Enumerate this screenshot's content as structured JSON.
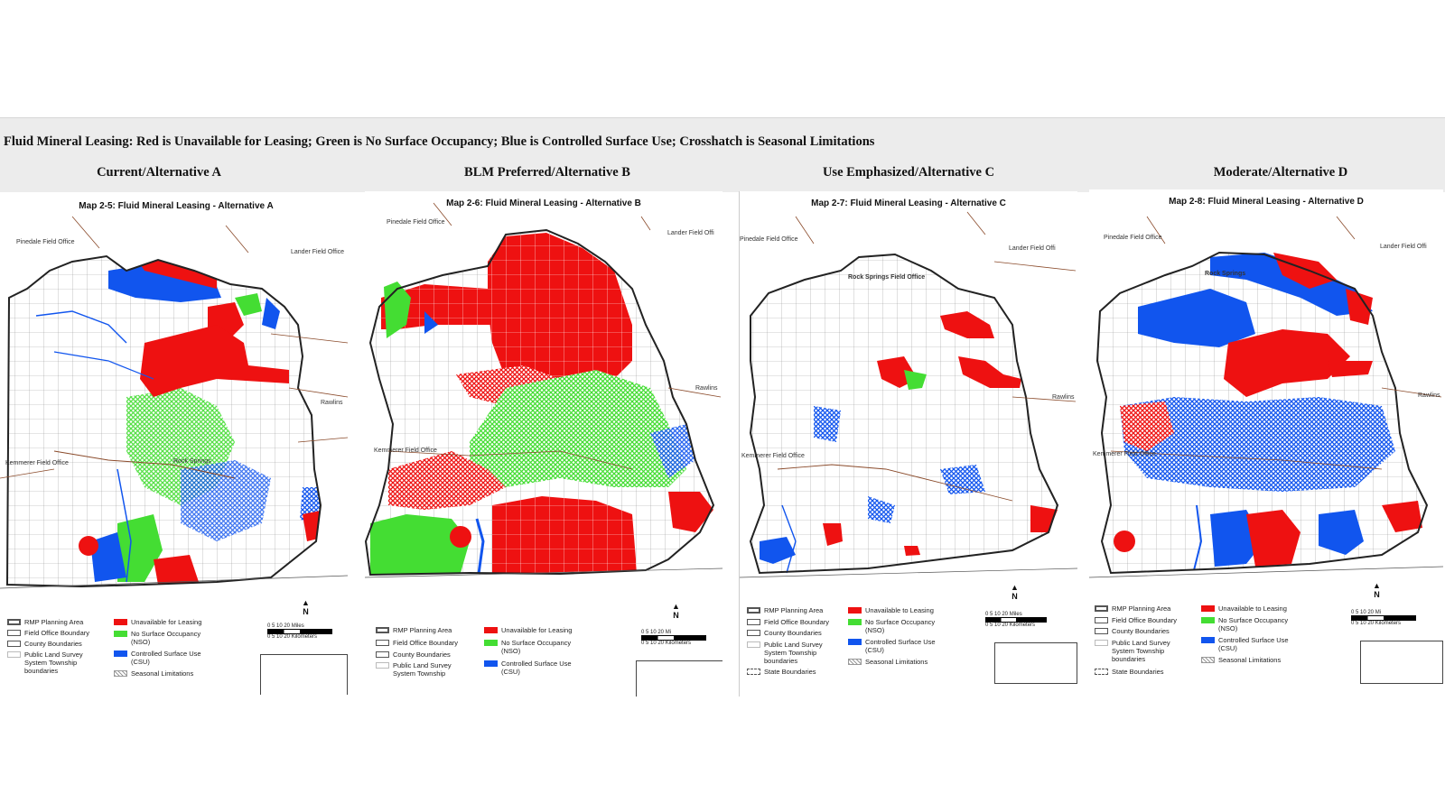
{
  "banner": {
    "title": "Fluid Mineral Leasing: Red is Unavailable for Leasing; Green is No Surface Occupancy; Blue is Controlled Surface Use; Crosshatch is Seasonal Limitations",
    "alternatives": [
      "Current/Alternative A",
      "BLM Preferred/Alternative B",
      "Use Emphasized/Alternative C",
      "Moderate/Alternative D"
    ]
  },
  "colors": {
    "unavailable": "#ee1111",
    "nso": "#44dd33",
    "csu": "#1155ee",
    "seasonal": "#aaaaaa"
  },
  "panels": [
    {
      "title": "Map 2-5: Fluid Mineral Leasing - Alternative A",
      "field_offices": {
        "pinedale": "Pinedale Field Office",
        "lander": "Lander Field Office",
        "rawlins": "Rawlins",
        "kemmerer": "Kemmerer Field Office",
        "rock_springs": "Rock Springs"
      },
      "legend_left": [
        "RMP Planning Area",
        "Field Office Boundary",
        "County Boundaries",
        "Public Land Survey System Township boundaries"
      ],
      "legend_right": [
        "Unavailable for Leasing",
        "No Surface Occupancy (NSO)",
        "Controlled Surface Use (CSU)",
        "Seasonal Limitations"
      ],
      "scale_top": "0   5   10        20",
      "scale_unit_top": "Miles",
      "scale_bottom": "0   5  10       20",
      "scale_unit_bottom": "Kilometers",
      "north": "N"
    },
    {
      "title": "Map 2-6: Fluid Mineral Leasing - Alternative B",
      "field_offices": {
        "pinedale": "Pinedale Field Office",
        "lander": "Lander Field Offi",
        "rawlins": "Rawlins",
        "kemmerer": "Kemmerer Field Office"
      },
      "legend_left": [
        "RMP Planning Area",
        "Field Office Boundary",
        "County Boundaries",
        "Public Land Survey System Township"
      ],
      "legend_right": [
        "Unavailable for Leasing",
        "No Surface Occupancy (NSO)",
        "Controlled Surface Use (CSU)"
      ],
      "scale_top": "0   5   10        20",
      "scale_unit_top": "Mi",
      "scale_bottom": "0   5  10       20",
      "scale_unit_bottom": "Kilometers",
      "north": "N"
    },
    {
      "title": "Map 2-7: Fluid Mineral Leasing - Alternative C",
      "field_offices": {
        "pinedale": "Pinedale Field Office",
        "lander": "Lander Field Offi",
        "rawlins": "Rawlins",
        "kemmerer": "Kemmerer Field Office",
        "rock_springs": "Rock Springs Field Office"
      },
      "legend_left": [
        "RMP Planning Area",
        "Field Office Boundary",
        "County Boundaries",
        "Public Land Survey System Township boundaries",
        "State Boundaries"
      ],
      "legend_right": [
        "Unavailable to Leasing",
        "No Surface Occupancy (NSO)",
        "Controlled Surface Use (CSU)",
        "Seasonal Limitations"
      ],
      "scale_top": "0   5   10        20",
      "scale_unit_top": "Miles",
      "scale_bottom": "0   5  10       20",
      "scale_unit_bottom": "Kilometers",
      "north": "N"
    },
    {
      "title": "Map 2-8: Fluid Mineral Leasing - Alternative D",
      "field_offices": {
        "pinedale": "Pinedale Field Office",
        "lander": "Lander Field Offi",
        "rawlins": "Rawlins",
        "kemmerer": "Kemmerer Field Office",
        "rock_springs": "Rock Springs"
      },
      "legend_left": [
        "RMP Planning Area",
        "Field Office Boundary",
        "County Boundaries",
        "Public Land Survey System Township boundaries",
        "State Boundaries"
      ],
      "legend_right": [
        "Unavailable to Leasing",
        "No Surface Occupancy (NSO)",
        "Controlled Surface Use (CSU)",
        "Seasonal Limitations"
      ],
      "scale_top": "0   5   10        20",
      "scale_unit_top": "Mi",
      "scale_bottom": "0   5  10       20",
      "scale_unit_bottom": "Kilometers",
      "north": "N"
    }
  ]
}
